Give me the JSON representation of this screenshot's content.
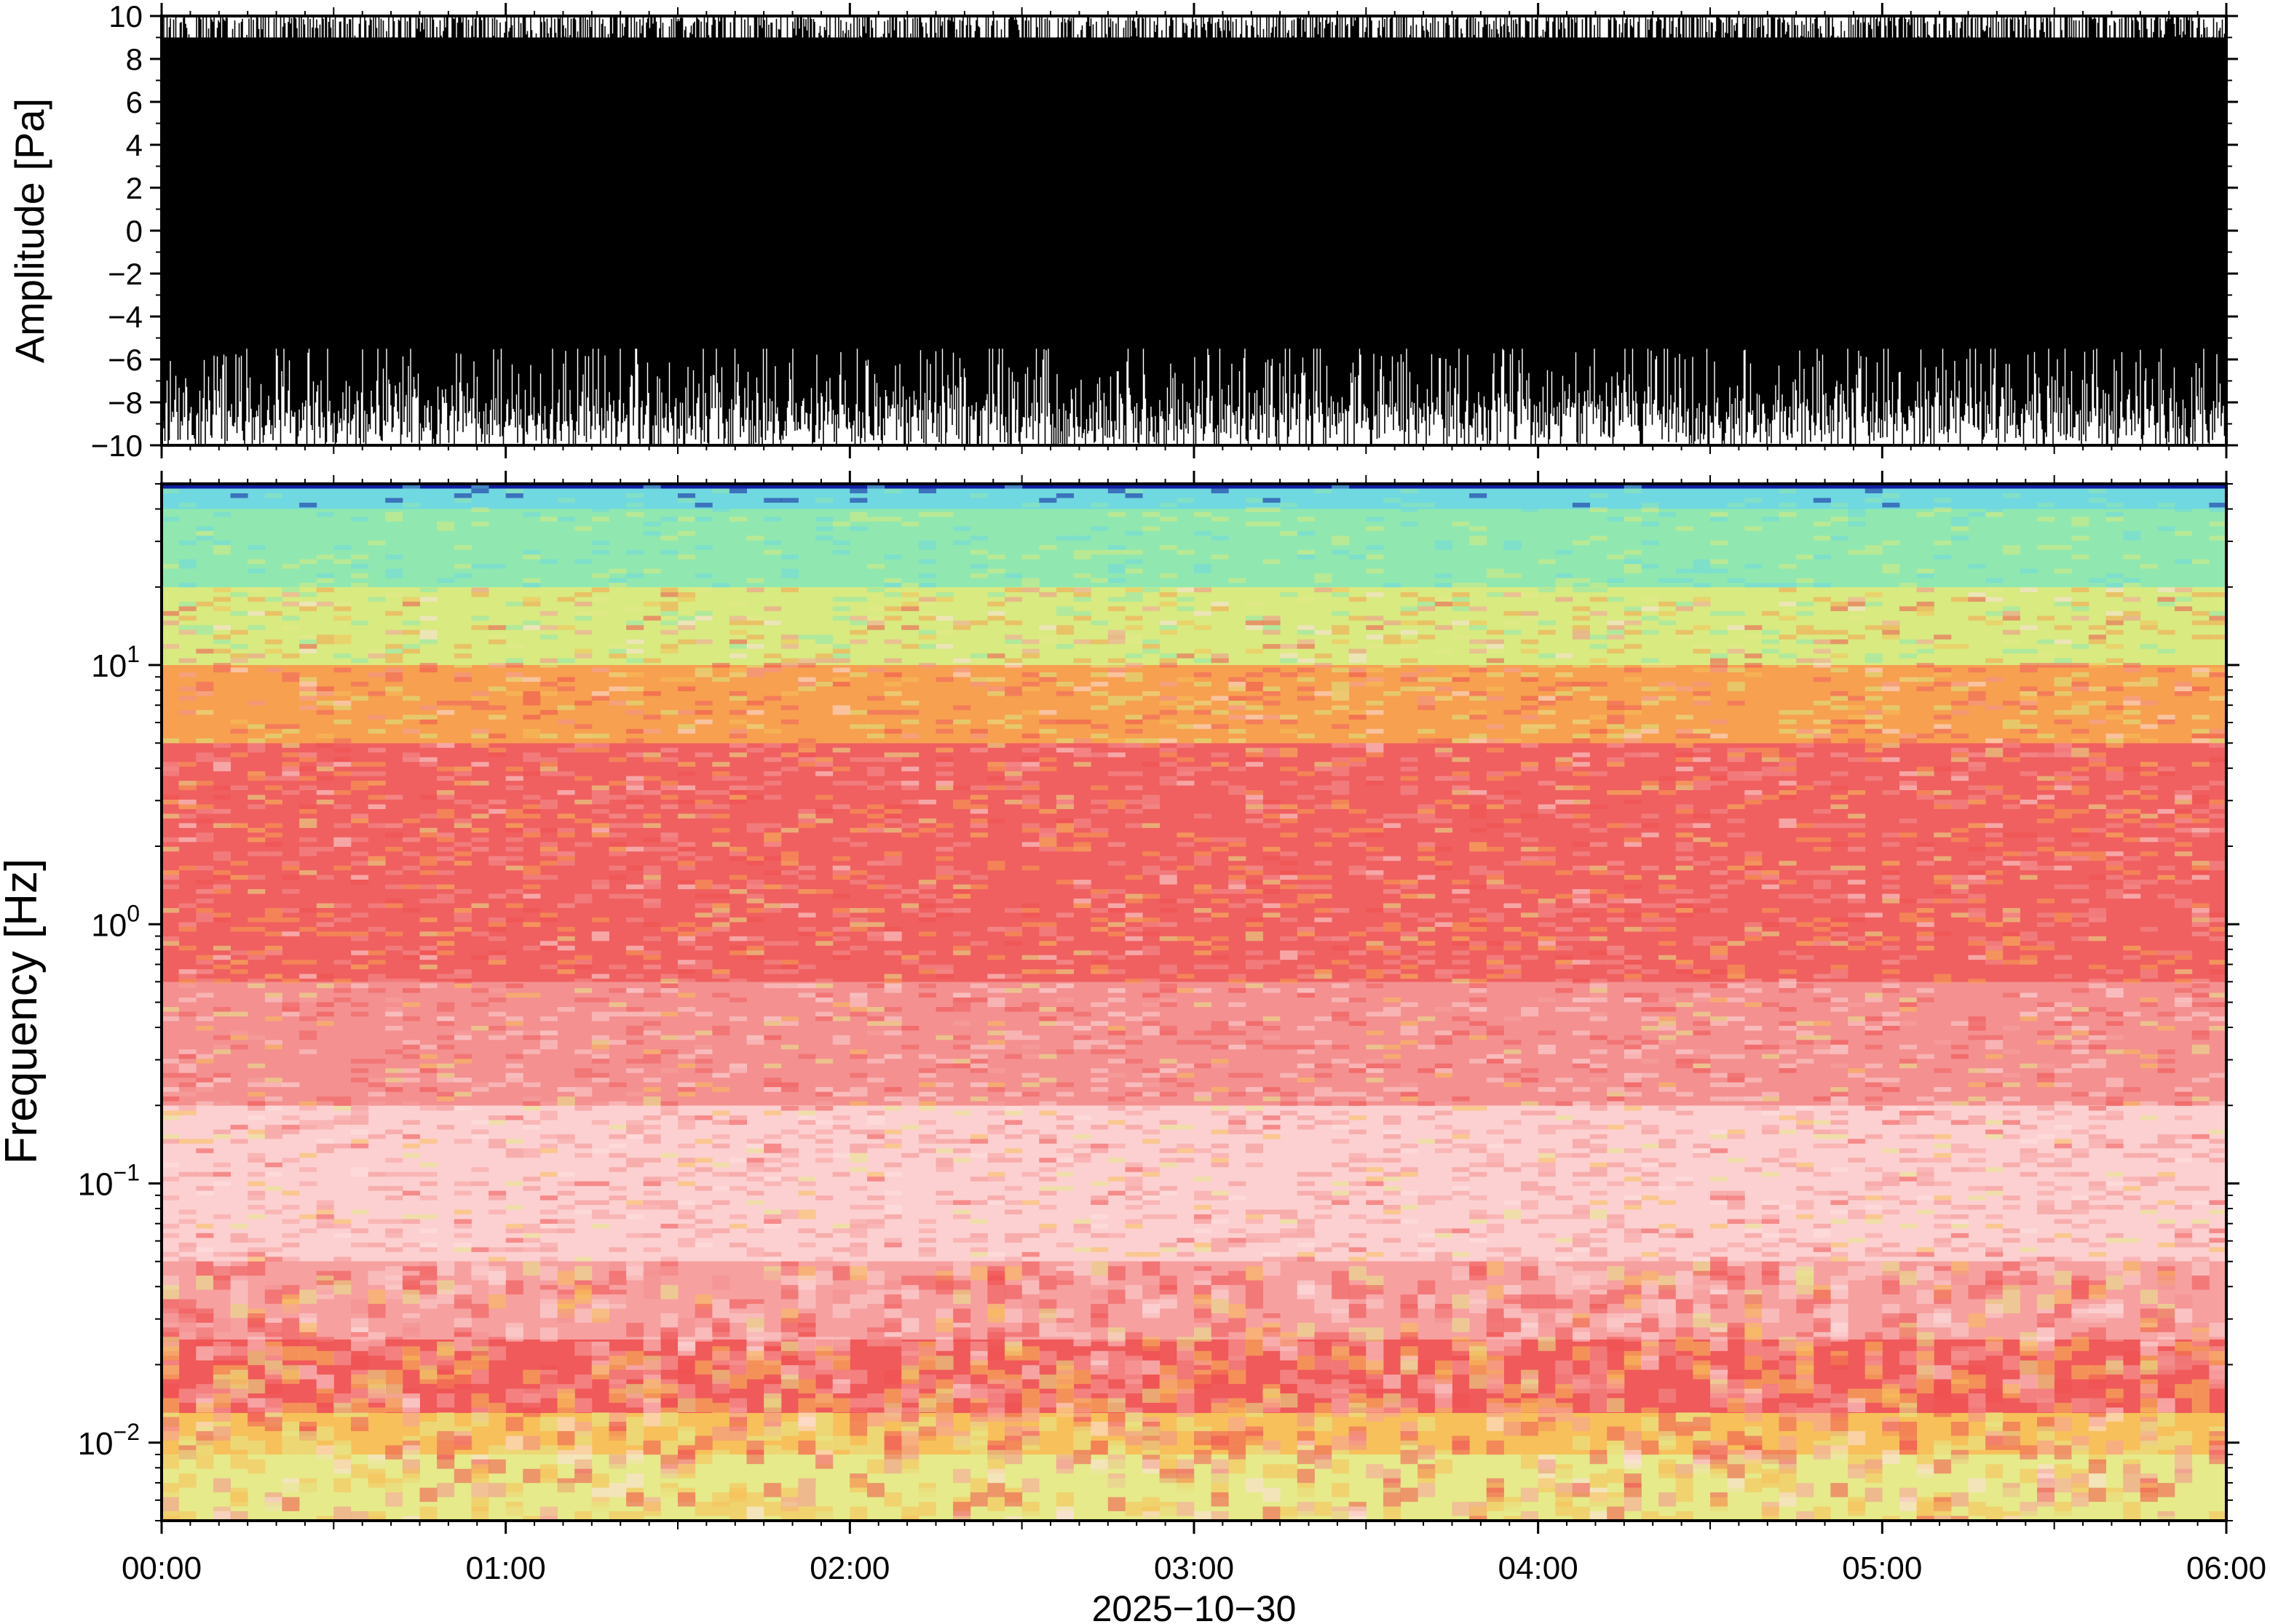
{
  "chart_data": [
    {
      "type": "line",
      "name": "waveform",
      "title": "",
      "ylabel": "Amplitude [Pa]",
      "xlabel": "",
      "ylim": [
        -10,
        10
      ],
      "yticks": [
        "10",
        "8",
        "6",
        "4",
        "2",
        "0",
        "−2",
        "−4",
        "−6",
        "−8",
        "−10"
      ],
      "xlim": [
        "00:00",
        "06:00"
      ],
      "description_values": {
        "typical_low_envelope": -7,
        "typical_high_envelope": 10,
        "clipped_at": [
          -10,
          10
        ]
      },
      "line_color": "#000000"
    },
    {
      "type": "heatmap",
      "name": "spectrogram",
      "title": "",
      "ylabel": "Frequency [Hz]",
      "xlabel": "2025−10−30",
      "yscale": "log",
      "ylim": [
        0.005,
        50
      ],
      "yticks": [
        {
          "value": 10,
          "base": "10",
          "exp": "1"
        },
        {
          "value": 1,
          "base": "10",
          "exp": "0"
        },
        {
          "value": 0.1,
          "base": "10",
          "exp": "−1"
        },
        {
          "value": 0.01,
          "base": "10",
          "exp": "−2"
        }
      ],
      "xticks": [
        "00:00",
        "01:00",
        "02:00",
        "03:00",
        "04:00",
        "05:00",
        "06:00"
      ],
      "frequency_bands": [
        {
          "f_low": 0.005,
          "f_high": 0.009,
          "color": "#e6ea8a"
        },
        {
          "f_low": 0.009,
          "f_high": 0.013,
          "color": "#f7c05a"
        },
        {
          "f_low": 0.013,
          "f_high": 0.025,
          "color": "#f05a5a"
        },
        {
          "f_low": 0.025,
          "f_high": 0.05,
          "color": "#f7a0a0"
        },
        {
          "f_low": 0.05,
          "f_high": 0.2,
          "color": "#fcd0d0"
        },
        {
          "f_low": 0.2,
          "f_high": 0.6,
          "color": "#f49090"
        },
        {
          "f_low": 0.6,
          "f_high": 5,
          "color": "#f06060"
        },
        {
          "f_low": 5,
          "f_high": 10,
          "color": "#f7a050"
        },
        {
          "f_low": 10,
          "f_high": 20,
          "color": "#d8ea80"
        },
        {
          "f_low": 20,
          "f_high": 40,
          "color": "#90e8b0"
        },
        {
          "f_low": 40,
          "f_high": 48,
          "color": "#70d8e0"
        },
        {
          "f_low": 48,
          "f_high": 50,
          "color": "#1020a0"
        }
      ]
    }
  ]
}
